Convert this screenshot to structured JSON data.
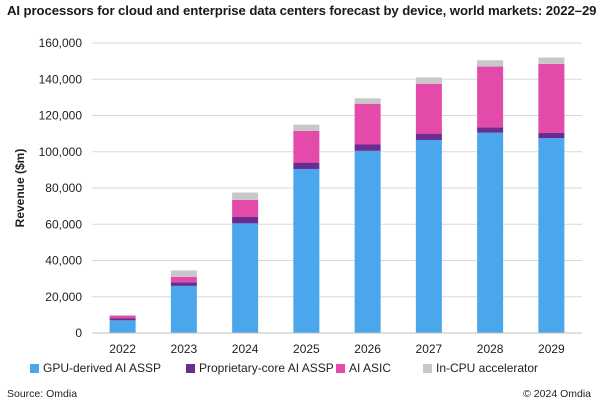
{
  "chart_data": {
    "type": "bar",
    "stacked": true,
    "title": "AI processors for cloud and enterprise data centers forecast by device, world markets: 2022–29",
    "xlabel": "",
    "ylabel": "Revenue ($m)",
    "ylim": [
      0,
      160000
    ],
    "yticks": [
      0,
      20000,
      40000,
      60000,
      80000,
      100000,
      120000,
      140000,
      160000
    ],
    "ytick_labels": [
      "0",
      "20,000",
      "40,000",
      "60,000",
      "80,000",
      "100,000",
      "120,000",
      "140,000",
      "160,000"
    ],
    "categories": [
      "2022",
      "2023",
      "2024",
      "2025",
      "2026",
      "2027",
      "2028",
      "2029"
    ],
    "grid": true,
    "legend_position": "bottom",
    "series": [
      {
        "name": "GPU-derived AI ASSP",
        "color": "#4ba7ec",
        "values": [
          7000,
          26000,
          60500,
          90500,
          100500,
          106500,
          110500,
          107500
        ]
      },
      {
        "name": "Proprietary-core AI ASSP",
        "color": "#6a2c91",
        "values": [
          1000,
          2000,
          3500,
          3500,
          3500,
          3500,
          3000,
          3000
        ]
      },
      {
        "name": "AI ASIC",
        "color": "#e44aa9",
        "values": [
          1500,
          3000,
          9500,
          17500,
          22500,
          27500,
          33500,
          38000
        ]
      },
      {
        "name": "In-CPU accelerator",
        "color": "#c8c8c8",
        "values": [
          500,
          3500,
          4000,
          3500,
          3000,
          3500,
          3500,
          3500
        ]
      }
    ]
  },
  "footer": {
    "source": "Source: Omdia",
    "copyright": "© 2024 Omdia"
  }
}
